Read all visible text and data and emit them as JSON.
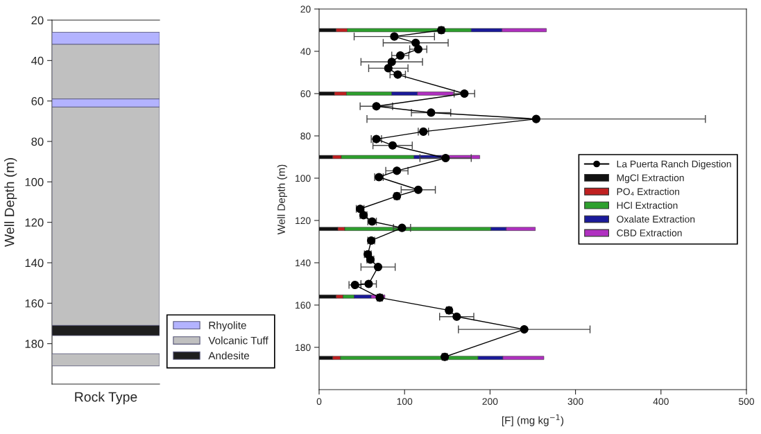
{
  "chart_data": [
    {
      "type": "bar",
      "categories": [
        null
      ],
      "xlabel": "Rock Type",
      "ylabel": "Well Depth (m)",
      "ylim": [
        200,
        20
      ],
      "yticks": [
        20,
        40,
        60,
        80,
        100,
        120,
        140,
        160,
        180
      ],
      "tick_labels": "y",
      "legend": "bottom right",
      "series": [
        {
          "name": "Rhyolite",
          "color": "#b3b3ff",
          "base": [
            26
          ],
          "values": [
            6
          ]
        },
        {
          "name": "Volcanic Tuff",
          "color": "#c0c0c0",
          "base": [
            32
          ],
          "values": [
            27
          ]
        },
        {
          "color": "#b3b3ff",
          "base": [
            59
          ],
          "values": [
            4
          ]
        },
        {
          "color": "#c0c0c0",
          "base": [
            63
          ],
          "values": [
            108
          ]
        },
        {
          "name": "Andesite",
          "color": "#1e1e1e",
          "base": [
            171
          ],
          "values": [
            5
          ]
        },
        {
          "color": "#c0c0c0",
          "base": [
            185
          ],
          "values": [
            6
          ]
        }
      ]
    },
    {
      "type": "bar",
      "orientation": "horizontal",
      "stacked": true,
      "x": [
        30,
        60,
        90,
        124,
        156,
        185
      ],
      "xlabel": "[F] (mg kg$^{−1}$)",
      "ylabel": "Well Depth (m)",
      "xlim": [
        0,
        500
      ],
      "xticks": [
        0,
        100,
        200,
        300,
        400,
        500
      ],
      "ylim": [
        200,
        20
      ],
      "yticks": [
        20,
        40,
        60,
        80,
        100,
        120,
        140,
        160,
        180
      ],
      "legend": "right",
      "marker": "circle",
      "line_style": "solid",
      "series": [
        {
          "name": "La Puerta Ranch Digestion",
          "type": "line",
          "color": "#000000",
          "x": [
            30,
            33,
            36,
            39,
            42,
            45,
            48,
            51,
            60,
            66,
            69,
            72,
            78,
            81.5,
            84.5,
            90.5,
            96.5,
            99.5,
            105.5,
            108.5,
            114.5,
            117.5,
            120.5,
            123.5,
            129.5,
            136,
            138.5,
            142,
            150,
            150.5,
            156.5,
            162.5,
            165.5,
            171.5,
            184.5
          ],
          "values": [
            143,
            88,
            113,
            116,
            95,
            85,
            81,
            92,
            170,
            67,
            131,
            254,
            122,
            67,
            86,
            148,
            91,
            70,
            116,
            91,
            48,
            52,
            62,
            97,
            61,
            57,
            60,
            69,
            58,
            42,
            71,
            152,
            161,
            240,
            147
          ],
          "errors": [
            3,
            47,
            38,
            10,
            10,
            36,
            23,
            9,
            12,
            19,
            23,
            198,
            6,
            6,
            23,
            30,
            13,
            5,
            20,
            3,
            4.5,
            4,
            5,
            10,
            4,
            4,
            4,
            20,
            9,
            7,
            3,
            3,
            20,
            77,
            3
          ]
        },
        {
          "name": "MgCl Extraction",
          "color": "#111111",
          "values": [
            20,
            18,
            16,
            22,
            20,
            16
          ]
        },
        {
          "name": "PO₄ Extraction",
          "color": "#c02020",
          "values": [
            13,
            14,
            10,
            8,
            8,
            9
          ]
        },
        {
          "name": "HCl Extraction",
          "color": "#2ea02e",
          "values": [
            145,
            53,
            85,
            171,
            13,
            161
          ]
        },
        {
          "name": "Oxalate Extraction",
          "color": "#1a1a9a",
          "values": [
            36,
            30,
            32,
            18,
            20,
            29
          ]
        },
        {
          "name": "CBD Extraction",
          "color": "#b030c0",
          "values": [
            52,
            42,
            45,
            34,
            16,
            48
          ]
        }
      ]
    }
  ]
}
